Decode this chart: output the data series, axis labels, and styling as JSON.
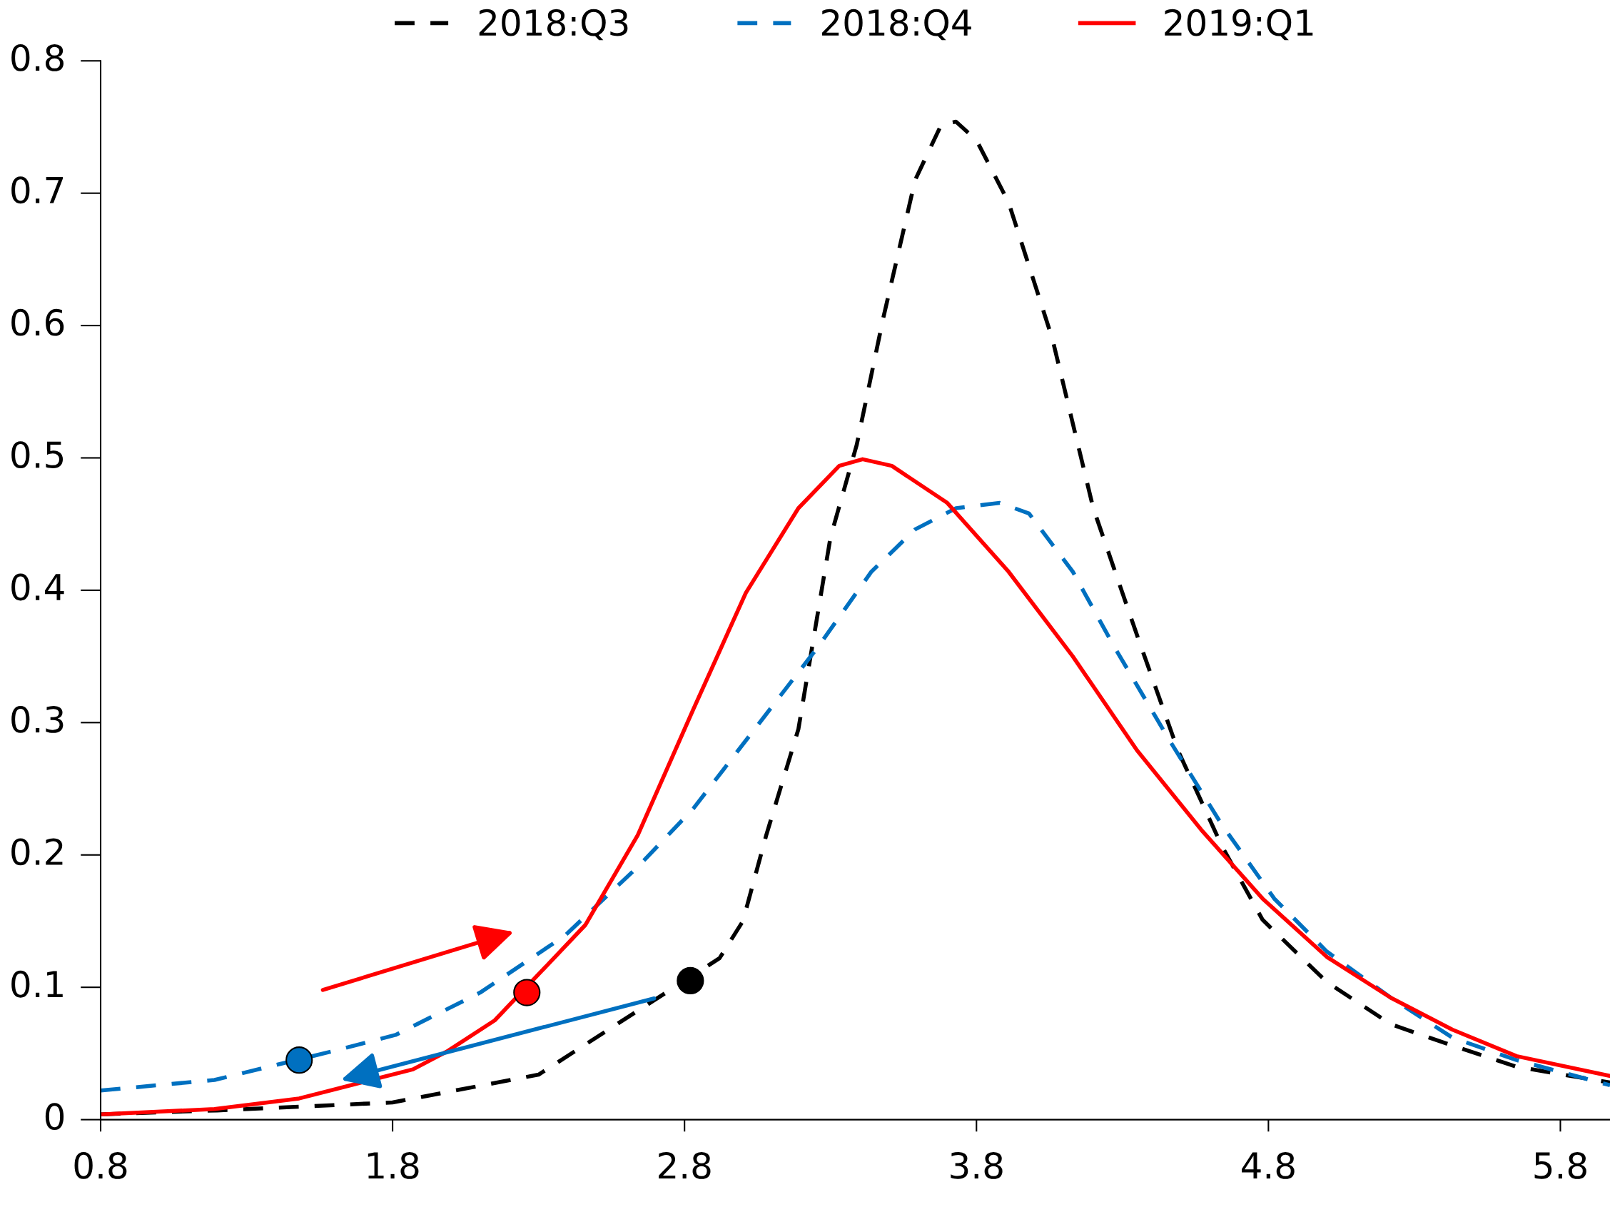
{
  "chart_data": {
    "type": "line",
    "xlim": [
      0.8,
      5.97
    ],
    "ylim": [
      0,
      0.8
    ],
    "xticks": [
      0.8,
      1.8,
      2.8,
      3.8,
      4.8,
      5.8
    ],
    "yticks": [
      0,
      0.1,
      0.2,
      0.3,
      0.4,
      0.5,
      0.6,
      0.7,
      0.8
    ],
    "grid": false,
    "legend": "top",
    "marker": "none",
    "series": [
      {
        "name": "2018:Q3",
        "color": "#000000",
        "line_style": "dashed",
        "x": [
          0.8,
          1.2,
          1.8,
          2.3,
          2.92,
          3.0,
          3.08,
          3.19,
          3.3,
          3.39,
          3.48,
          3.59,
          3.68,
          3.73,
          3.8,
          3.91,
          4.06,
          4.2,
          4.35,
          4.49,
          4.64,
          4.78,
          5.0,
          5.22,
          5.43,
          5.65,
          5.97
        ],
        "values": [
          0.004,
          0.007,
          0.013,
          0.034,
          0.122,
          0.15,
          0.215,
          0.295,
          0.44,
          0.51,
          0.605,
          0.71,
          0.752,
          0.754,
          0.74,
          0.693,
          0.59,
          0.462,
          0.366,
          0.279,
          0.207,
          0.151,
          0.104,
          0.072,
          0.056,
          0.04,
          0.028
        ]
      },
      {
        "name": "2018:Q4",
        "color": "#0070c0",
        "line_style": "dashed",
        "x": [
          0.8,
          1.19,
          1.6,
          1.81,
          2.1,
          2.39,
          2.64,
          2.83,
          3.04,
          3.26,
          3.44,
          3.59,
          3.73,
          3.88,
          3.98,
          4.13,
          4.27,
          4.46,
          4.64,
          4.82,
          5.0,
          5.22,
          5.43,
          5.65,
          5.97
        ],
        "values": [
          0.022,
          0.03,
          0.052,
          0.064,
          0.096,
          0.139,
          0.191,
          0.235,
          0.295,
          0.358,
          0.414,
          0.446,
          0.462,
          0.466,
          0.458,
          0.414,
          0.358,
          0.287,
          0.223,
          0.167,
          0.127,
          0.092,
          0.062,
          0.045,
          0.026
        ]
      },
      {
        "name": "2019:Q1",
        "color": "#ff0000",
        "line_style": "solid",
        "x": [
          0.8,
          1.19,
          1.48,
          1.87,
          1.99,
          2.15,
          2.46,
          2.64,
          2.83,
          3.01,
          3.19,
          3.33,
          3.41,
          3.51,
          3.7,
          3.91,
          4.13,
          4.35,
          4.57,
          4.78,
          5.0,
          5.22,
          5.43,
          5.65,
          5.97
        ],
        "values": [
          0.004,
          0.008,
          0.016,
          0.038,
          0.052,
          0.075,
          0.147,
          0.215,
          0.31,
          0.398,
          0.462,
          0.494,
          0.499,
          0.494,
          0.466,
          0.414,
          0.35,
          0.279,
          0.219,
          0.167,
          0.123,
          0.092,
          0.068,
          0.048,
          0.033
        ]
      },
      {
        "type": "scatter",
        "marker": "circle",
        "x": [
          2.82,
          1.48,
          2.26
        ],
        "values": [
          0.105,
          0.045,
          0.096
        ],
        "colors": [
          "#000000",
          "#0070c0",
          "#ff0000"
        ]
      }
    ]
  }
}
